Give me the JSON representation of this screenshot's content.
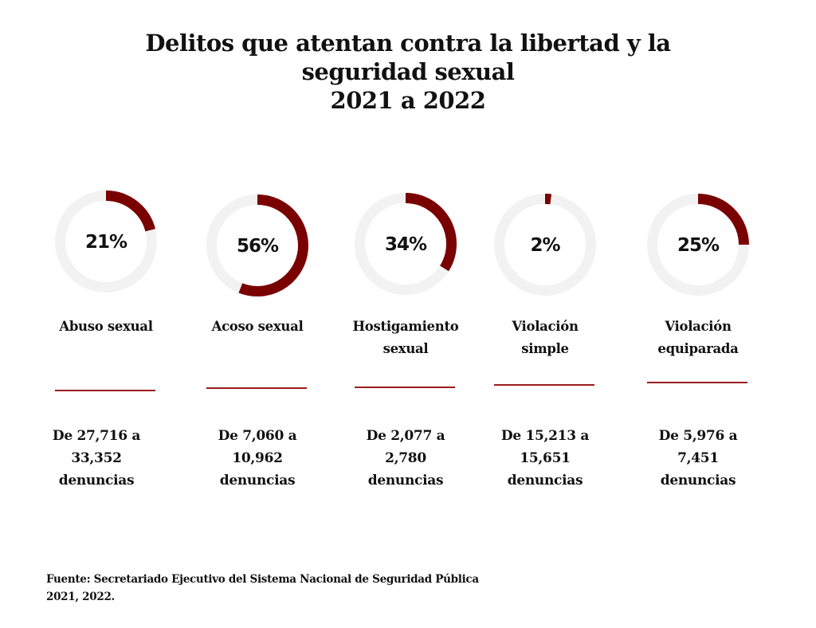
{
  "title": {
    "lines": [
      "Delitos que atentan contra la libertad y la",
      "seguridad sexual",
      "2021 a 2022"
    ]
  },
  "colors": {
    "accent": "#7a0000",
    "track": "#f2f2f2",
    "divider": "#9b1c1c",
    "text": "#111111"
  },
  "chart_data": {
    "type": "pie",
    "subtype": "donut-progress",
    "title": "Delitos que atentan contra la libertad y la seguridad sexual 2021 a 2022",
    "unit": "percent increase",
    "categories": [
      "Abuso sexual",
      "Acoso sexual",
      "Hostigamiento sexual",
      "Violación simple",
      "Violación equiparada"
    ],
    "values": [
      21,
      56,
      34,
      2,
      25
    ],
    "value_labels": [
      "21%",
      "56%",
      "34%",
      "2%",
      "25%"
    ],
    "items": [
      {
        "label_lines": [
          "Abuso sexual"
        ],
        "percent": 21,
        "percent_label": "21%",
        "from": "27,716",
        "to": "33,352",
        "range_lines": [
          "De 27,716 a",
          "33,352",
          "denuncias"
        ]
      },
      {
        "label_lines": [
          "Acoso sexual"
        ],
        "percent": 56,
        "percent_label": "56%",
        "from": "7,060",
        "to": "10,962",
        "range_lines": [
          "De 7,060 a",
          "10,962",
          "denuncias"
        ]
      },
      {
        "label_lines": [
          "Hostigamiento",
          "sexual"
        ],
        "percent": 34,
        "percent_label": "34%",
        "from": "2,077",
        "to": "2,780",
        "range_lines": [
          "De 2,077 a",
          "2,780",
          "denuncias"
        ]
      },
      {
        "label_lines": [
          "Violación",
          "simple"
        ],
        "percent": 2,
        "percent_label": "2%",
        "from": "15,213",
        "to": "15,651",
        "range_lines": [
          "De 15,213 a",
          "15,651",
          "denuncias"
        ]
      },
      {
        "label_lines": [
          "Violación",
          "equiparada"
        ],
        "percent": 25,
        "percent_label": "25%",
        "from": "5,976",
        "to": "7,451",
        "range_lines": [
          "De 5,976 a",
          "7,451",
          "denuncias"
        ]
      }
    ]
  },
  "source": {
    "lines": [
      "Fuente: Secretariado Ejecutivo del Sistema Nacional de Seguridad Pública",
      "2021, 2022."
    ]
  }
}
